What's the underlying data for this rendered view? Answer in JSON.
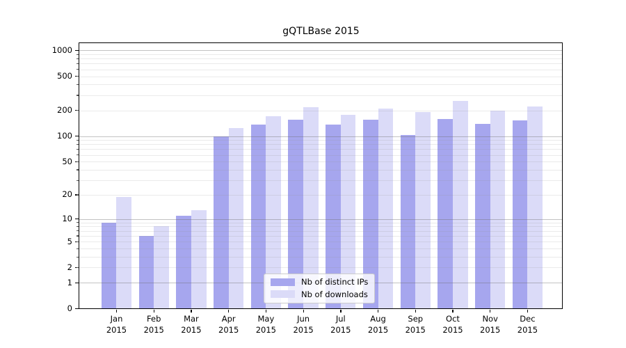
{
  "title": "gQTLBase 2015",
  "legend": {
    "items": [
      {
        "label": "Nb of distinct IPs",
        "color": "#a6a6ee"
      },
      {
        "label": "Nb of downloads",
        "color": "#dbdbf8"
      }
    ]
  },
  "axes": {
    "y_tick_labels": [
      "0",
      "1",
      "2",
      "5",
      "10",
      "20",
      "50",
      "100",
      "200",
      "500",
      "1000"
    ],
    "months": [
      "Jan",
      "Feb",
      "Mar",
      "Apr",
      "May",
      "Jun",
      "Jul",
      "Aug",
      "Sep",
      "Oct",
      "Nov",
      "Dec"
    ],
    "year": "2015"
  },
  "chart_data": {
    "type": "bar",
    "title": "gQTLBase 2015",
    "categories": [
      "Jan 2015",
      "Feb 2015",
      "Mar 2015",
      "Apr 2015",
      "May 2015",
      "Jun 2015",
      "Jul 2015",
      "Aug 2015",
      "Sep 2015",
      "Oct 2015",
      "Nov 2015",
      "Dec 2015"
    ],
    "series": [
      {
        "name": "Nb of distinct IPs",
        "color": "#a6a6ee",
        "values": [
          9,
          6,
          11,
          100,
          137,
          157,
          136,
          156,
          103,
          158,
          138,
          154
        ]
      },
      {
        "name": "Nb of downloads",
        "color": "#dbdbf8",
        "values": [
          19,
          8,
          13,
          125,
          172,
          218,
          178,
          210,
          190,
          260,
          198,
          223
        ]
      }
    ],
    "yscale": "log10(value+1)",
    "y_ticks": [
      0,
      1,
      2,
      5,
      10,
      20,
      50,
      100,
      200,
      500,
      1000
    ],
    "ylim": [
      0,
      1265
    ],
    "grid": "horizontal, major at powers of 10 + minor at 2-9 per decade",
    "legend_position": "lower center"
  }
}
